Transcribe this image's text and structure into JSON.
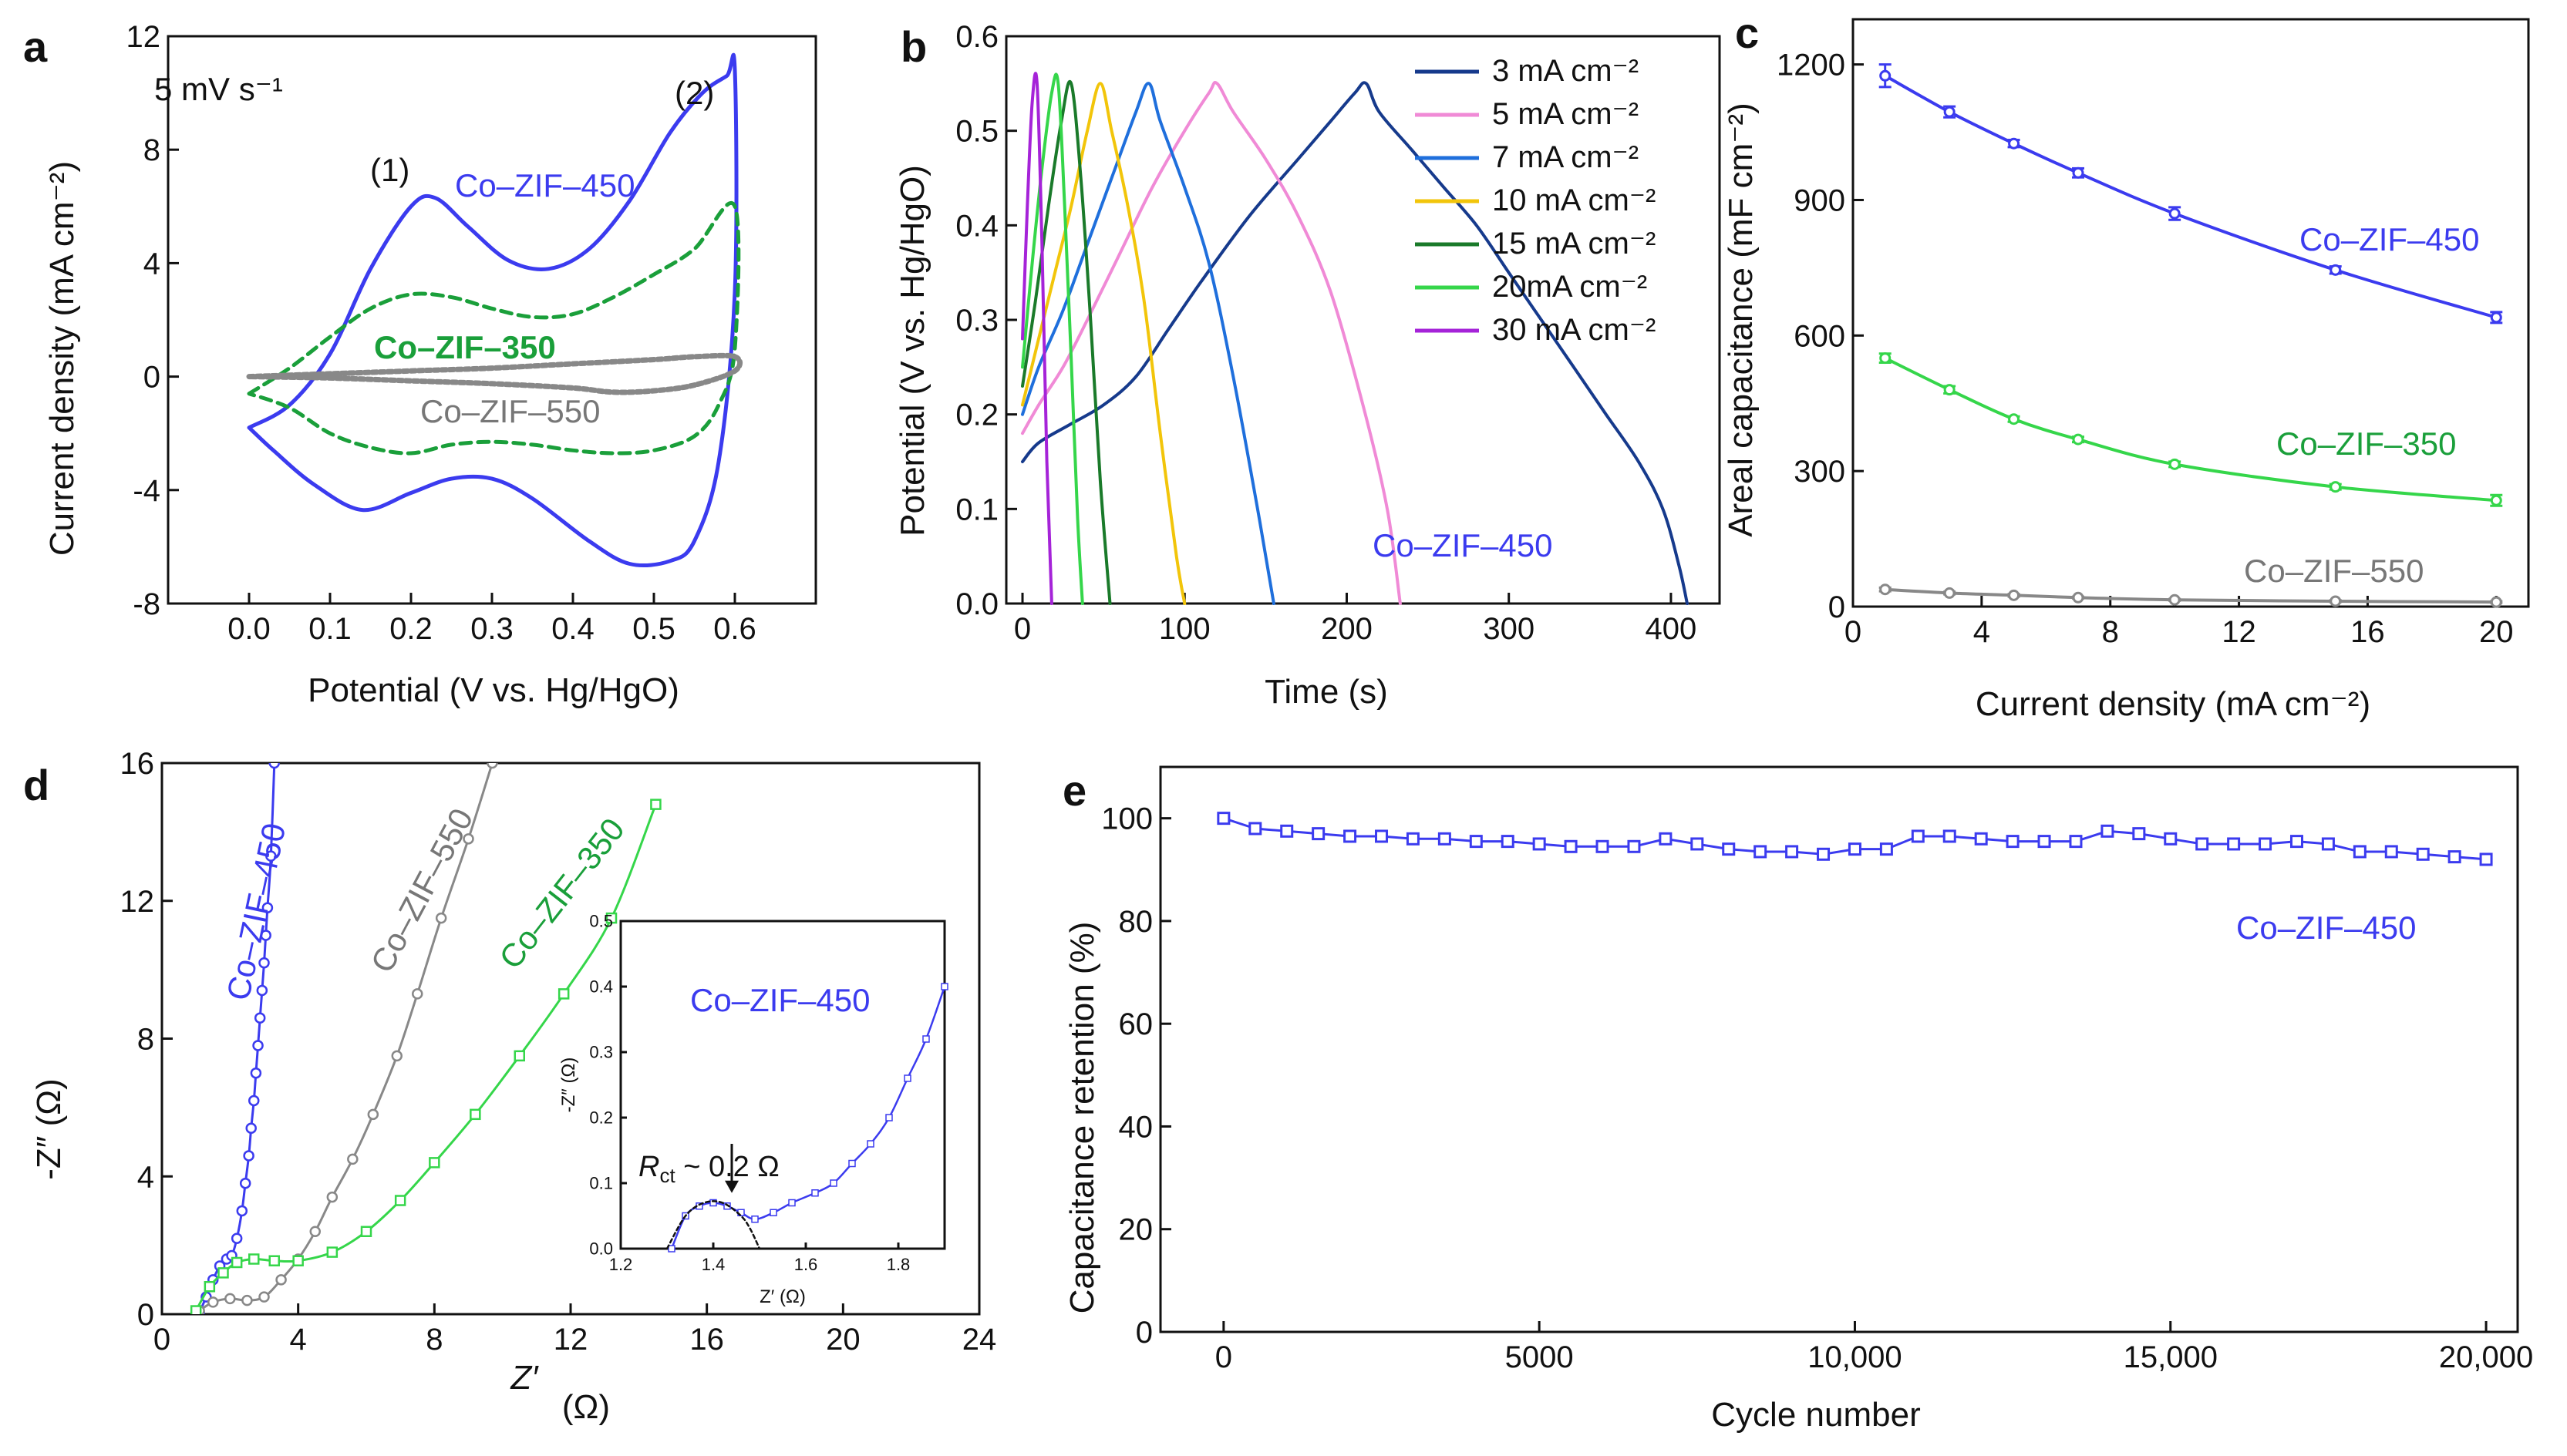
{
  "colors": {
    "co_zif_450": "#3b3bef",
    "co_zif_350": "#1a9f3a",
    "co_zif_550": "#888888",
    "axis": "#111111"
  },
  "chart_data": [
    {
      "panel": "a",
      "type": "line",
      "title": "",
      "annotation": "5 mV s⁻¹",
      "peak_labels": [
        "(1)",
        "(2)"
      ],
      "xlabel": "Potential (V vs. Hg/HgO)",
      "ylabel": "Current density (mA cm⁻²)",
      "xlim": [
        -0.1,
        0.7
      ],
      "ylim": [
        -8,
        12
      ],
      "xticks": [
        "0.0",
        "0.1",
        "0.2",
        "0.3",
        "0.4",
        "0.5",
        "0.6"
      ],
      "yticks": [
        "-8",
        "-4",
        "0",
        "4",
        "8",
        "12"
      ],
      "series": [
        {
          "name": "Co–ZIF–450",
          "color": "#3b3bef",
          "style": "solid",
          "x": [
            0.0,
            0.05,
            0.1,
            0.15,
            0.2,
            0.23,
            0.27,
            0.32,
            0.37,
            0.42,
            0.47,
            0.52,
            0.56,
            0.59,
            0.6,
            0.6,
            0.58,
            0.55,
            0.52,
            0.47,
            0.42,
            0.35,
            0.3,
            0.25,
            0.2,
            0.14,
            0.08,
            0.03,
            0.0
          ],
          "y": [
            -1.8,
            -1.0,
            0.8,
            3.8,
            6.0,
            6.3,
            5.3,
            4.1,
            3.8,
            4.5,
            6.2,
            8.6,
            10.0,
            10.6,
            10.8,
            3.0,
            -3.0,
            -5.8,
            -6.5,
            -6.6,
            -5.8,
            -4.3,
            -3.6,
            -3.6,
            -4.1,
            -4.7,
            -3.8,
            -2.6,
            -1.8
          ]
        },
        {
          "name": "Co–ZIF–350",
          "color": "#1a9f3a",
          "style": "dashed",
          "x": [
            0.0,
            0.05,
            0.1,
            0.15,
            0.2,
            0.25,
            0.3,
            0.35,
            0.4,
            0.45,
            0.5,
            0.55,
            0.6,
            0.6,
            0.58,
            0.55,
            0.5,
            0.45,
            0.4,
            0.35,
            0.3,
            0.25,
            0.2,
            0.15,
            0.1,
            0.05,
            0.0
          ],
          "y": [
            -0.6,
            0.3,
            1.4,
            2.4,
            2.9,
            2.8,
            2.4,
            2.1,
            2.2,
            2.8,
            3.6,
            4.5,
            6.0,
            1.0,
            -1.0,
            -2.1,
            -2.6,
            -2.7,
            -2.6,
            -2.4,
            -2.3,
            -2.4,
            -2.7,
            -2.5,
            -2.0,
            -1.1,
            -0.6
          ]
        },
        {
          "name": "Co–ZIF–550",
          "color": "#888888",
          "style": "dotted",
          "x": [
            0.0,
            0.1,
            0.2,
            0.3,
            0.4,
            0.5,
            0.55,
            0.6,
            0.6,
            0.55,
            0.5,
            0.45,
            0.4,
            0.3,
            0.2,
            0.1,
            0.0
          ],
          "y": [
            0.0,
            0.1,
            0.2,
            0.3,
            0.45,
            0.6,
            0.7,
            0.7,
            0.2,
            -0.3,
            -0.5,
            -0.55,
            -0.4,
            -0.25,
            -0.15,
            -0.05,
            0.0
          ]
        }
      ]
    },
    {
      "panel": "b",
      "type": "line",
      "title": "",
      "xlabel": "Time (s)",
      "ylabel": "Potential (V vs. Hg/HgO)",
      "xlim": [
        -10,
        430
      ],
      "ylim": [
        0.0,
        0.6
      ],
      "xticks": [
        "0",
        "100",
        "200",
        "300",
        "400"
      ],
      "yticks": [
        "0.0",
        "0.1",
        "0.2",
        "0.3",
        "0.4",
        "0.5",
        "0.6"
      ],
      "sample_label": "Co–ZIF–450",
      "series": [
        {
          "name": "3 mA cm⁻²",
          "color": "#163a8c",
          "x": [
            0,
            10,
            30,
            50,
            70,
            90,
            110,
            140,
            170,
            190,
            205,
            212,
            220,
            240,
            260,
            280,
            300,
            320,
            340,
            360,
            380,
            395,
            405,
            410
          ],
          "y": [
            0.15,
            0.17,
            0.19,
            0.21,
            0.24,
            0.29,
            0.34,
            0.41,
            0.47,
            0.51,
            0.54,
            0.55,
            0.52,
            0.48,
            0.44,
            0.4,
            0.35,
            0.3,
            0.25,
            0.2,
            0.15,
            0.1,
            0.04,
            0.0
          ]
        },
        {
          "name": "5 mA cm⁻²",
          "color": "#f08ad6",
          "x": [
            0,
            10,
            25,
            40,
            60,
            80,
            100,
            115,
            120,
            130,
            150,
            170,
            190,
            210,
            225,
            233
          ],
          "y": [
            0.18,
            0.21,
            0.25,
            0.3,
            0.37,
            0.44,
            0.5,
            0.54,
            0.55,
            0.52,
            0.47,
            0.41,
            0.33,
            0.21,
            0.1,
            0.0
          ]
        },
        {
          "name": "7 mA cm⁻²",
          "color": "#1f6fdc",
          "x": [
            0,
            10,
            25,
            40,
            55,
            70,
            78,
            85,
            100,
            115,
            130,
            145,
            155
          ],
          "y": [
            0.2,
            0.25,
            0.31,
            0.38,
            0.45,
            0.52,
            0.55,
            0.51,
            0.44,
            0.36,
            0.24,
            0.1,
            0.0
          ]
        },
        {
          "name": "10 mA cm⁻²",
          "color": "#f2c50a",
          "x": [
            0,
            10,
            20,
            30,
            40,
            48,
            55,
            65,
            75,
            85,
            95,
            100
          ],
          "y": [
            0.21,
            0.28,
            0.35,
            0.42,
            0.5,
            0.55,
            0.5,
            0.42,
            0.32,
            0.18,
            0.05,
            0.0
          ]
        },
        {
          "name": "15 mA cm⁻²",
          "color": "#1a7a2a",
          "x": [
            0,
            8,
            16,
            24,
            30,
            36,
            42,
            48,
            54
          ],
          "y": [
            0.23,
            0.32,
            0.42,
            0.51,
            0.55,
            0.45,
            0.3,
            0.13,
            0.0
          ]
        },
        {
          "name": "20mA cm⁻²",
          "color": "#35d64a",
          "x": [
            0,
            6,
            12,
            18,
            22,
            26,
            30,
            34,
            37
          ],
          "y": [
            0.25,
            0.36,
            0.46,
            0.54,
            0.55,
            0.42,
            0.26,
            0.09,
            0.0
          ]
        },
        {
          "name": "30 mA cm⁻²",
          "color": "#a523d8",
          "x": [
            0,
            3,
            6,
            9,
            12,
            15,
            18
          ],
          "y": [
            0.28,
            0.42,
            0.53,
            0.55,
            0.38,
            0.15,
            0.0
          ]
        }
      ]
    },
    {
      "panel": "c",
      "type": "line",
      "title": "",
      "xlabel": "Current density  (mA cm⁻²)",
      "ylabel": "Areal capacitance (mF cm⁻²)",
      "xlim": [
        0,
        21
      ],
      "ylim": [
        0,
        1300
      ],
      "xticks": [
        "0",
        "4",
        "8",
        "12",
        "16",
        "20"
      ],
      "yticks": [
        "0",
        "300",
        "600",
        "900",
        "1200"
      ],
      "series": [
        {
          "name": "Co–ZIF–450",
          "color": "#3b3bef",
          "x": [
            1,
            3,
            5,
            7,
            10,
            15,
            20
          ],
          "y": [
            1175,
            1095,
            1025,
            960,
            870,
            745,
            640
          ],
          "err": [
            25,
            12,
            8,
            10,
            14,
            8,
            12
          ]
        },
        {
          "name": "Co–ZIF–350",
          "color": "#35d64a",
          "x": [
            1,
            3,
            5,
            7,
            10,
            15,
            20
          ],
          "y": [
            550,
            480,
            415,
            370,
            315,
            265,
            235
          ],
          "err": [
            10,
            8,
            6,
            6,
            6,
            6,
            12
          ]
        },
        {
          "name": "Co–ZIF–550",
          "color": "#888888",
          "x": [
            1,
            3,
            5,
            7,
            10,
            15,
            20
          ],
          "y": [
            38,
            30,
            25,
            20,
            15,
            12,
            10
          ],
          "err": [
            4,
            3,
            3,
            2,
            2,
            2,
            2
          ]
        }
      ]
    },
    {
      "panel": "d",
      "type": "scatter",
      "title": "",
      "xlabel": "Z′",
      "xunit": "(Ω)",
      "ylabel": "-Z″ (Ω)",
      "xlim": [
        0,
        24
      ],
      "ylim": [
        0,
        16
      ],
      "xticks": [
        "0",
        "4",
        "8",
        "12",
        "16",
        "20",
        "24"
      ],
      "yticks": [
        "0",
        "4",
        "8",
        "12",
        "16"
      ],
      "series": [
        {
          "name": "Co–ZIF–450",
          "color": "#3b3bef",
          "marker": "circle",
          "x": [
            1.1,
            1.3,
            1.5,
            1.7,
            1.9,
            2.05,
            2.2,
            2.35,
            2.45,
            2.55,
            2.62,
            2.7,
            2.76,
            2.82,
            2.88,
            2.94,
            3.0,
            3.05,
            3.1,
            3.2,
            3.3
          ],
          "y": [
            0.05,
            0.5,
            1.0,
            1.4,
            1.6,
            1.7,
            2.2,
            3.0,
            3.8,
            4.6,
            5.4,
            6.2,
            7.0,
            7.8,
            8.6,
            9.4,
            10.2,
            11.0,
            11.8,
            13.3,
            16.0
          ]
        },
        {
          "name": "Co–ZIF–550",
          "color": "#888888",
          "marker": "circle",
          "x": [
            1.1,
            1.5,
            2.0,
            2.5,
            3.0,
            3.5,
            4.0,
            4.5,
            5.0,
            5.6,
            6.2,
            6.9,
            7.5,
            8.2,
            9.0,
            9.7
          ],
          "y": [
            0.1,
            0.35,
            0.45,
            0.4,
            0.5,
            1.0,
            1.6,
            2.4,
            3.4,
            4.5,
            5.8,
            7.5,
            9.3,
            11.5,
            13.8,
            16.0
          ]
        },
        {
          "name": "Co–ZIF–350",
          "color": "#35d64a",
          "marker": "square",
          "x": [
            1.0,
            1.4,
            1.8,
            2.2,
            2.7,
            3.3,
            4.0,
            5.0,
            6.0,
            7.0,
            8.0,
            9.2,
            10.5,
            11.8,
            13.2,
            14.5
          ],
          "y": [
            0.1,
            0.8,
            1.2,
            1.5,
            1.6,
            1.55,
            1.55,
            1.8,
            2.4,
            3.3,
            4.4,
            5.8,
            7.5,
            9.3,
            11.5,
            14.8
          ]
        }
      ],
      "series_labels": [
        "Co–ZIF–450",
        "Co–ZIF–550",
        "Co–ZIF–350"
      ],
      "inset": {
        "title": "Co–ZIF–450",
        "xlabel": "Z′ (Ω)",
        "ylabel": "-Z″ (Ω)",
        "xlim": [
          1.2,
          1.9
        ],
        "ylim": [
          0.0,
          0.5
        ],
        "xticks": [
          "1.2",
          "1.4",
          "1.6",
          "1.8"
        ],
        "yticks": [
          "0.0",
          "0.1",
          "0.2",
          "0.3",
          "0.4",
          "0.5"
        ],
        "annotation_main": "R",
        "annotation_sub": "ct",
        "annotation_rest": " ~ 0.2 Ω",
        "series": {
          "x": [
            1.31,
            1.34,
            1.37,
            1.4,
            1.43,
            1.46,
            1.49,
            1.53,
            1.57,
            1.62,
            1.66,
            1.7,
            1.74,
            1.78,
            1.82,
            1.86,
            1.9
          ],
          "y": [
            0.0,
            0.05,
            0.065,
            0.07,
            0.065,
            0.055,
            0.045,
            0.055,
            0.07,
            0.085,
            0.1,
            0.13,
            0.16,
            0.2,
            0.26,
            0.32,
            0.4
          ]
        }
      }
    },
    {
      "panel": "e",
      "type": "line",
      "title": "",
      "xlabel": "Cycle number",
      "ylabel": "Capacitance retention (%)",
      "xlim": [
        -1000,
        20500
      ],
      "ylim": [
        0,
        110
      ],
      "xticks": [
        "0",
        "5000",
        "10,000",
        "15,000",
        "20,000"
      ],
      "xtick_values": [
        0,
        5000,
        10000,
        15000,
        20000
      ],
      "yticks": [
        "0",
        "20",
        "40",
        "60",
        "80",
        "100"
      ],
      "sample_label": "Co–ZIF–450",
      "series": [
        {
          "name": "Co–ZIF–450",
          "color": "#3b3bef",
          "marker": "square",
          "x": [
            0,
            500,
            1000,
            1500,
            2000,
            2500,
            3000,
            3500,
            4000,
            4500,
            5000,
            5500,
            6000,
            6500,
            7000,
            7500,
            8000,
            8500,
            9000,
            9500,
            10000,
            10500,
            11000,
            11500,
            12000,
            12500,
            13000,
            13500,
            14000,
            14500,
            15000,
            15500,
            16000,
            16500,
            17000,
            17500,
            18000,
            18500,
            19000,
            19500,
            20000
          ],
          "y": [
            100,
            98,
            97.5,
            97,
            96.5,
            96.5,
            96,
            96,
            95.5,
            95.5,
            95,
            94.5,
            94.5,
            94.5,
            96,
            95,
            94,
            93.5,
            93.5,
            93,
            94,
            94,
            96.5,
            96.5,
            96,
            95.5,
            95.5,
            95.5,
            97.5,
            97,
            96,
            95,
            95,
            95,
            95.5,
            95,
            93.5,
            93.5,
            93,
            92.5,
            92
          ]
        }
      ]
    }
  ]
}
